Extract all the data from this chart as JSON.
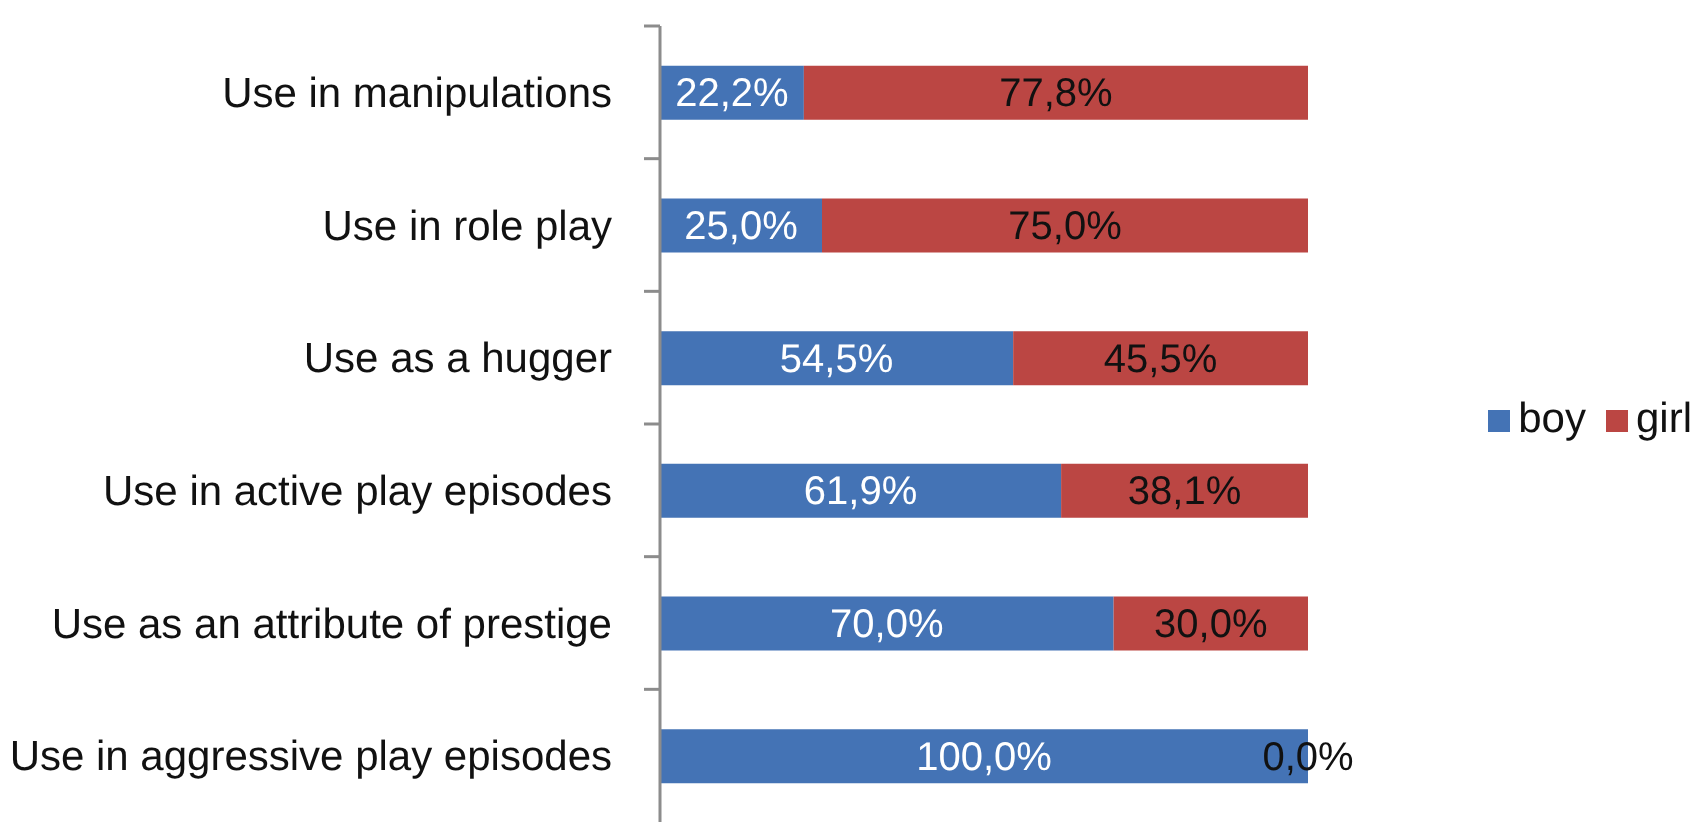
{
  "chart_data": {
    "type": "bar",
    "orientation": "horizontal",
    "stacked": true,
    "tick_labels": "y",
    "legend": "right",
    "categories": [
      "Use in manipulations",
      "Use in role play",
      "Use as a hugger",
      "Use in active play episodes",
      "Use as an attribute of prestige",
      "Use in aggressive play episodes"
    ],
    "series": [
      {
        "name": "boy",
        "color": "#4473b5",
        "values": [
          22.2,
          25.0,
          54.5,
          61.9,
          70.0,
          100.0
        ],
        "value_labels": [
          "22,2%",
          "25,0%",
          "54,5%",
          "61,9%",
          "70,0%",
          "100,0%"
        ]
      },
      {
        "name": "girl",
        "color": "#bb4643",
        "values": [
          77.8,
          75.0,
          45.5,
          38.1,
          30.0,
          0.0
        ],
        "value_labels": [
          "77,8%",
          "75,0%",
          "45,5%",
          "38,1%",
          "30,0%",
          "0,0%"
        ]
      }
    ]
  }
}
